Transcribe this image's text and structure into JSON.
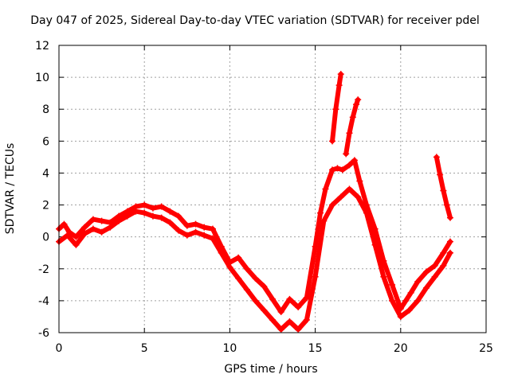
{
  "chart_data": {
    "type": "scatter",
    "title": "Day 047 of 2025, Sidereal Day-to-day VTEC variation (SDTVAR) for receiver pdel",
    "xlabel": "GPS time / hours",
    "ylabel": "SDTVAR / TECUs",
    "xlim": [
      0,
      25
    ],
    "ylim": [
      -6,
      12
    ],
    "xticks": [
      "0",
      "5",
      "10",
      "15",
      "20",
      "25"
    ],
    "yticks": [
      "-6",
      "-4",
      "-2",
      "0",
      "2",
      "4",
      "6",
      "8",
      "10",
      "12"
    ],
    "grid": true,
    "marker": "+",
    "color": "#ff0000",
    "series": [
      {
        "x": [
          0.0,
          0.3,
          0.6,
          1.0,
          1.5,
          2.0,
          2.5,
          3.0,
          3.5,
          4.0,
          4.5,
          5.0,
          5.5,
          6.0,
          6.5,
          7.0,
          7.5,
          8.0,
          8.5,
          9.0,
          9.5,
          10.0,
          10.5,
          11.0,
          11.5,
          12.0,
          12.5,
          13.0,
          13.5,
          14.0,
          14.5,
          15.0,
          15.3,
          15.6,
          16.0,
          16.3,
          16.6,
          17.0,
          17.3,
          17.6,
          18.0,
          18.5,
          19.0,
          19.5,
          20.0,
          20.3,
          20.6,
          21.0,
          21.5,
          22.0,
          22.5,
          22.9
        ],
        "y": [
          0.5,
          0.8,
          0.3,
          0.0,
          0.6,
          1.1,
          1.0,
          0.9,
          1.3,
          1.6,
          1.9,
          2.0,
          1.8,
          1.9,
          1.6,
          1.3,
          0.7,
          0.8,
          0.6,
          0.5,
          -0.6,
          -1.6,
          -1.3,
          -2.0,
          -2.6,
          -3.1,
          -3.9,
          -4.7,
          -3.9,
          -4.4,
          -3.8,
          -0.6,
          1.5,
          3.0,
          4.2,
          4.3,
          4.2,
          4.5,
          4.8,
          3.5,
          2.0,
          0.5,
          -1.5,
          -3.0,
          -4.5,
          -4.0,
          -3.5,
          -2.8,
          -2.2,
          -1.8,
          -1.0,
          -0.3
        ]
      },
      {
        "x": [
          0.0,
          0.5,
          1.0,
          1.5,
          2.0,
          2.5,
          3.0,
          3.5,
          4.0,
          4.5,
          5.0,
          5.5,
          6.0,
          6.5,
          7.0,
          7.5,
          8.0,
          8.5,
          9.0,
          9.5,
          10.0,
          10.5,
          11.0,
          11.5,
          12.0,
          12.5,
          13.0,
          13.5,
          14.0,
          14.5,
          15.0,
          15.5,
          16.0,
          16.5,
          17.0,
          17.5,
          18.0,
          18.5,
          19.0,
          19.5,
          20.0,
          20.5,
          21.0,
          21.5,
          22.0,
          22.5,
          22.9
        ],
        "y": [
          -0.3,
          0.1,
          -0.5,
          0.2,
          0.5,
          0.3,
          0.6,
          1.0,
          1.3,
          1.6,
          1.5,
          1.3,
          1.2,
          0.9,
          0.4,
          0.1,
          0.3,
          0.1,
          -0.1,
          -1.0,
          -1.9,
          -2.6,
          -3.3,
          -4.0,
          -4.6,
          -5.2,
          -5.8,
          -5.3,
          -5.8,
          -5.2,
          -2.5,
          1.0,
          2.0,
          2.5,
          3.0,
          2.5,
          1.5,
          -0.5,
          -2.5,
          -4.0,
          -5.0,
          -4.6,
          -4.0,
          -3.2,
          -2.5,
          -1.8,
          -1.0
        ]
      },
      {
        "x": [
          16.0,
          16.2,
          16.4,
          16.5
        ],
        "y": [
          6.0,
          8.0,
          9.5,
          10.2
        ]
      },
      {
        "x": [
          16.8,
          17.0,
          17.2,
          17.4,
          17.5
        ],
        "y": [
          5.2,
          6.5,
          7.5,
          8.3,
          8.6
        ]
      },
      {
        "x": [
          22.1,
          22.3,
          22.5,
          22.7,
          22.9
        ],
        "y": [
          5.0,
          3.9,
          2.9,
          2.0,
          1.2
        ]
      }
    ]
  }
}
